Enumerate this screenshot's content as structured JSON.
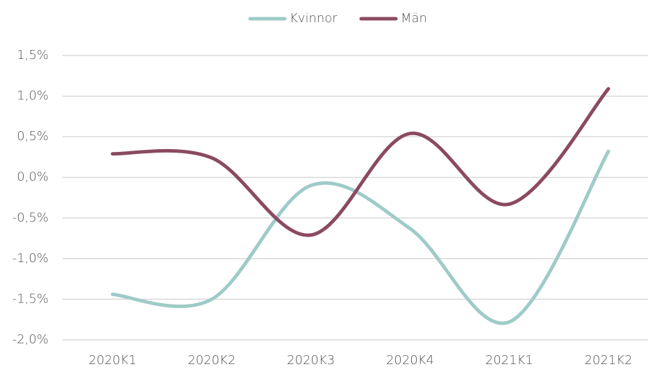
{
  "chart_data": {
    "type": "line",
    "categories": [
      "2020K1",
      "2020K2",
      "2020K3",
      "2020K4",
      "2021K1",
      "2021K2"
    ],
    "series": [
      {
        "name": "Kvinnor",
        "color": "#9ecbc8",
        "values": [
          -1.44,
          -1.5,
          -0.1,
          -0.63,
          -1.78,
          0.32
        ]
      },
      {
        "name": "Män",
        "color": "#8b4a62",
        "values": [
          0.29,
          0.24,
          -0.71,
          0.54,
          -0.33,
          1.09
        ]
      }
    ],
    "ylim": [
      -2.0,
      1.5
    ],
    "yticks": [
      {
        "value": -2.0,
        "label": "-2,0%"
      },
      {
        "value": -1.5,
        "label": "-1,5%"
      },
      {
        "value": -1.0,
        "label": "-1,0%"
      },
      {
        "value": -0.5,
        "label": "-0,5%"
      },
      {
        "value": 0,
        "label": "0,0%"
      },
      {
        "value": 0.5,
        "label": "0,5%"
      },
      {
        "value": 1.0,
        "label": "1,0%"
      },
      {
        "value": 1.5,
        "label": "1,5%"
      }
    ],
    "grid": true,
    "legend": "top",
    "smooth": true
  }
}
